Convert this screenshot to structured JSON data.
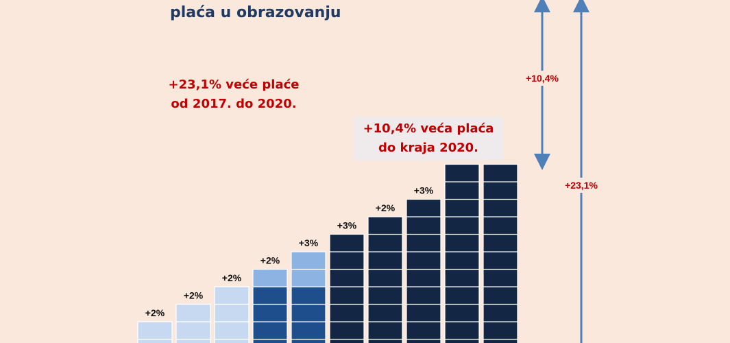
{
  "title": "plaća u obrazovanju",
  "note_left": {
    "line1": "+23,1% veće plaće",
    "line2": "od 2017. do 2020."
  },
  "note_box": {
    "line1": "+10,4% veća plaća",
    "line2": "do kraja 2020."
  },
  "colors": {
    "background": "#fbe8dd",
    "stage1": "#c6d9f1",
    "stage2_top": "#8db3e2",
    "stage2_base": "#1f4e8c",
    "stage3_top": "#4f81bd",
    "stage3_base": "#132744",
    "red": "#c00000",
    "arrow": "#4f7fb8"
  },
  "chart_data": {
    "type": "bar",
    "increments": [
      "+2%",
      "+2%",
      "+2%",
      "+2%",
      "+3%",
      "+3%",
      "+2%",
      "+3%",
      "",
      ""
    ],
    "values": [
      1,
      2,
      3,
      4,
      5,
      6,
      7,
      8,
      10,
      10
    ],
    "span_labels": [
      "+10,4%",
      "+23,1%"
    ]
  }
}
